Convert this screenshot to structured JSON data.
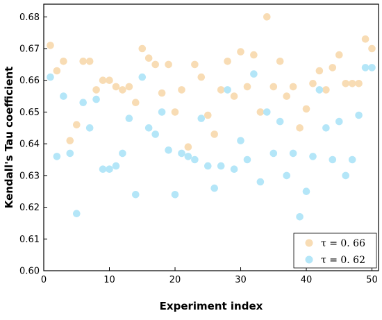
{
  "chart_data": {
    "type": "scatter",
    "xlabel": "Experiment index",
    "ylabel": "Kendall's Tau coefficient",
    "xlim": [
      0,
      51
    ],
    "ylim": [
      0.6,
      0.684
    ],
    "xticks": [
      0,
      10,
      20,
      30,
      40,
      50
    ],
    "yticks": [
      0.6,
      0.61,
      0.62,
      0.63,
      0.64,
      0.65,
      0.66,
      0.67,
      0.68
    ],
    "xtick_labels": [
      "0",
      "10",
      "20",
      "30",
      "40",
      "50"
    ],
    "ytick_labels": [
      "0.60",
      "0.61",
      "0.62",
      "0.63",
      "0.64",
      "0.65",
      "0.66",
      "0.67",
      "0.68"
    ],
    "grid": false,
    "legend_position": "bottom-right",
    "series": [
      {
        "name": "τ = 0. 66",
        "color": "#f8dcb4",
        "x": [
          1,
          2,
          3,
          4,
          5,
          6,
          7,
          8,
          9,
          10,
          11,
          12,
          13,
          14,
          15,
          16,
          17,
          18,
          19,
          20,
          21,
          22,
          23,
          24,
          25,
          26,
          27,
          28,
          29,
          30,
          31,
          32,
          33,
          34,
          35,
          36,
          37,
          38,
          39,
          40,
          41,
          42,
          43,
          44,
          45,
          46,
          47,
          48,
          49,
          50
        ],
        "y": [
          0.671,
          0.663,
          0.666,
          0.641,
          0.646,
          0.666,
          0.666,
          0.657,
          0.66,
          0.66,
          0.658,
          0.657,
          0.658,
          0.653,
          0.67,
          0.667,
          0.665,
          0.656,
          0.665,
          0.65,
          0.657,
          0.639,
          0.665,
          0.661,
          0.649,
          0.643,
          0.657,
          0.666,
          0.655,
          0.669,
          0.658,
          0.668,
          0.65,
          0.68,
          0.658,
          0.666,
          0.655,
          0.658,
          0.645,
          0.651,
          0.659,
          0.663,
          0.657,
          0.664,
          0.668,
          0.659,
          0.659,
          0.659,
          0.673,
          0.67
        ]
      },
      {
        "name": "τ = 0. 62",
        "color": "#b4e6f8",
        "x": [
          1,
          2,
          3,
          4,
          5,
          6,
          7,
          8,
          9,
          10,
          11,
          12,
          13,
          14,
          15,
          16,
          17,
          18,
          19,
          20,
          21,
          22,
          23,
          24,
          25,
          26,
          27,
          28,
          29,
          30,
          31,
          32,
          33,
          34,
          35,
          36,
          37,
          38,
          39,
          40,
          41,
          42,
          43,
          44,
          45,
          46,
          47,
          48,
          49,
          50
        ],
        "y": [
          0.661,
          0.636,
          0.655,
          0.637,
          0.618,
          0.653,
          0.645,
          0.654,
          0.632,
          0.632,
          0.633,
          0.637,
          0.648,
          0.624,
          0.661,
          0.645,
          0.643,
          0.65,
          0.638,
          0.624,
          0.637,
          0.636,
          0.635,
          0.648,
          0.633,
          0.626,
          0.633,
          0.657,
          0.632,
          0.641,
          0.635,
          0.662,
          0.628,
          0.65,
          0.637,
          0.647,
          0.63,
          0.637,
          0.617,
          0.625,
          0.636,
          0.657,
          0.645,
          0.635,
          0.647,
          0.63,
          0.635,
          0.649,
          0.664,
          0.664
        ]
      }
    ]
  }
}
